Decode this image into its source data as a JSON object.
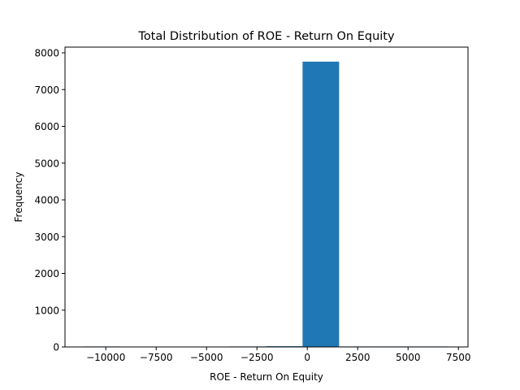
{
  "chart_data": {
    "type": "bar",
    "title": "Total Distribution of ROE - Return On Equity",
    "xlabel": "ROE - Return On Equity",
    "ylabel": "Frequency",
    "bar_color": "#1f77b4",
    "xlim": [
      -12025,
      7975
    ],
    "ylim": [
      0,
      8155
    ],
    "xticks": [
      -10000,
      -7500,
      -5000,
      -2500,
      0,
      2500,
      5000,
      7500
    ],
    "xtick_labels": [
      "−10000",
      "−7500",
      "−5000",
      "−2500",
      "0",
      "2500",
      "5000",
      "7500"
    ],
    "yticks": [
      0,
      1000,
      2000,
      3000,
      4000,
      5000,
      6000,
      7000,
      8000
    ],
    "ytick_labels": [
      "0",
      "1000",
      "2000",
      "3000",
      "4000",
      "5000",
      "6000",
      "7000",
      "8000"
    ],
    "bins": [
      {
        "x0": -11117,
        "x1": -9303,
        "count": 1
      },
      {
        "x0": -9303,
        "x1": -7490,
        "count": 0
      },
      {
        "x0": -7490,
        "x1": -5676,
        "count": 0
      },
      {
        "x0": -5676,
        "x1": -3863,
        "count": 0
      },
      {
        "x0": -3863,
        "x1": -2049,
        "count": 2
      },
      {
        "x0": -2049,
        "x1": -235,
        "count": 20
      },
      {
        "x0": -235,
        "x1": 1578,
        "count": 7760
      },
      {
        "x0": 1578,
        "x1": 3392,
        "count": 3
      },
      {
        "x0": 3392,
        "x1": 5205,
        "count": 1
      },
      {
        "x0": 5205,
        "x1": 7019,
        "count": 1
      }
    ],
    "grid": false,
    "legend": "none"
  }
}
